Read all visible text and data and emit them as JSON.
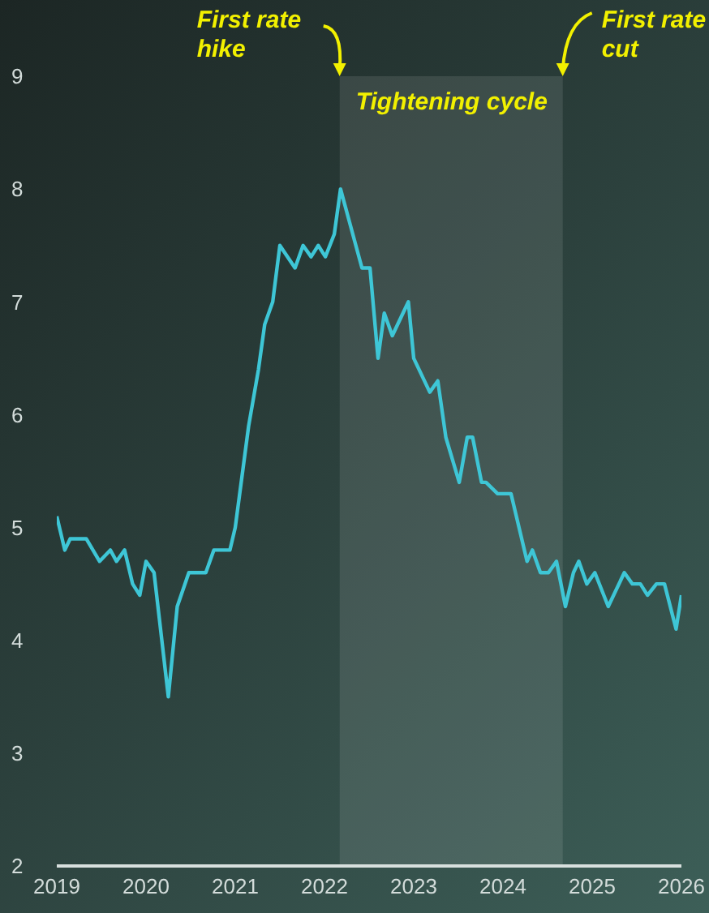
{
  "chart_data": {
    "type": "line",
    "x": [
      2019.0,
      2019.09,
      2019.15,
      2019.33,
      2019.48,
      2019.6,
      2019.67,
      2019.76,
      2019.85,
      2019.93,
      2020.0,
      2020.09,
      2020.25,
      2020.35,
      2020.48,
      2020.67,
      2020.76,
      2020.94,
      2021.0,
      2021.15,
      2021.26,
      2021.33,
      2021.42,
      2021.5,
      2021.67,
      2021.76,
      2021.85,
      2021.93,
      2022.01,
      2022.11,
      2022.18,
      2022.42,
      2022.51,
      2022.6,
      2022.67,
      2022.76,
      2022.94,
      2023.0,
      2023.18,
      2023.27,
      2023.36,
      2023.51,
      2023.6,
      2023.66,
      2023.76,
      2023.81,
      2023.94,
      2024.09,
      2024.27,
      2024.33,
      2024.42,
      2024.51,
      2024.6,
      2024.7,
      2024.79,
      2024.85,
      2024.94,
      2025.03,
      2025.18,
      2025.36,
      2025.45,
      2025.54,
      2025.62,
      2025.72,
      2025.81,
      2025.94,
      2026.0
    ],
    "series": [
      {
        "color": "#3ec6d6",
        "values": [
          5.1,
          4.8,
          4.9,
          4.9,
          4.7,
          4.8,
          4.7,
          4.8,
          4.5,
          4.4,
          4.7,
          4.6,
          3.5,
          4.3,
          4.6,
          4.6,
          4.8,
          4.8,
          5.0,
          5.9,
          6.4,
          6.8,
          7.0,
          7.5,
          7.3,
          7.5,
          7.4,
          7.5,
          7.4,
          7.6,
          8.0,
          7.3,
          7.3,
          6.5,
          6.9,
          6.7,
          7.0,
          6.5,
          6.2,
          6.3,
          5.8,
          5.4,
          5.8,
          5.8,
          5.4,
          5.4,
          5.3,
          5.3,
          4.7,
          4.8,
          4.6,
          4.6,
          4.7,
          4.3,
          4.6,
          4.7,
          4.5,
          4.6,
          4.3,
          4.6,
          4.5,
          4.5,
          4.4,
          4.5,
          4.5,
          4.1,
          4.4
        ]
      }
    ],
    "xlim": [
      2019,
      2026
    ],
    "xticks": [
      2019,
      2020,
      2021,
      2022,
      2023,
      2024,
      2025,
      2026
    ],
    "ylim": [
      2,
      9
    ],
    "yticks": [
      2,
      3,
      4,
      5,
      6,
      7,
      8,
      9
    ],
    "grid": false,
    "legend": false,
    "marker": "none",
    "line_style": "solid",
    "bands": [
      {
        "axis": "x",
        "from": 2022.17,
        "to": 2024.67,
        "label": "Tightening cycle",
        "color": "#ffffff"
      }
    ],
    "annotations": [
      {
        "text": "First rate hike",
        "x": 2022.17,
        "y": 9
      },
      {
        "text": "First rate cut",
        "x": 2024.67,
        "y": 9
      }
    ]
  }
}
